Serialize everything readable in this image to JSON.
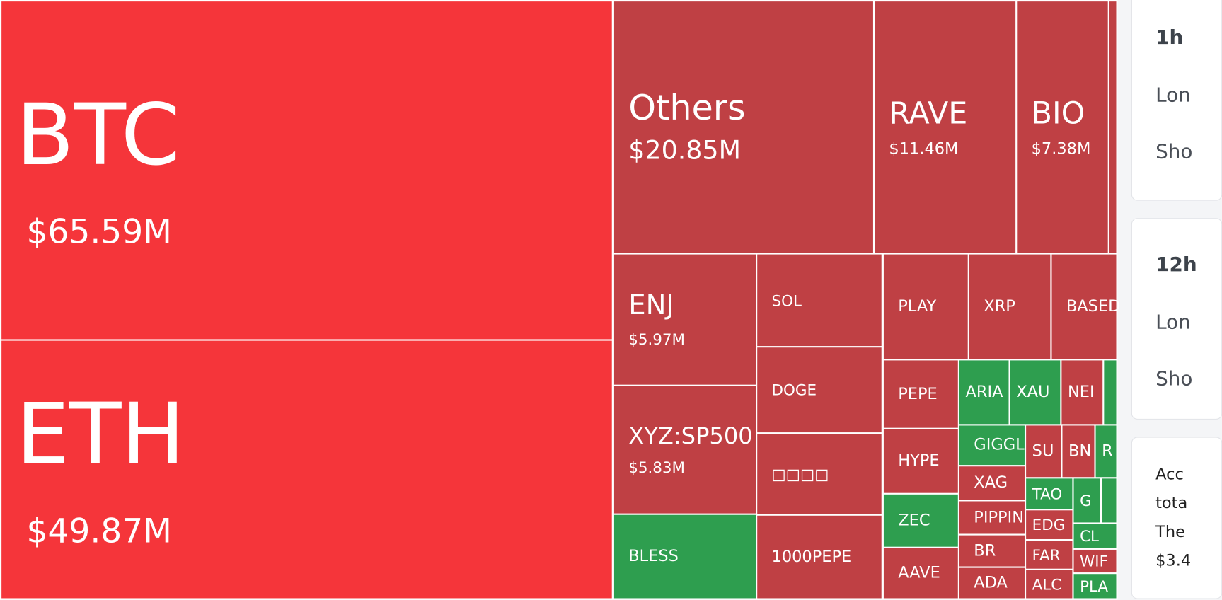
{
  "treemap": {
    "tiles": [
      {
        "label": "BTC",
        "value": "$65.59M",
        "color": "#f5353a"
      },
      {
        "label": "ETH",
        "value": "$49.87M",
        "color": "#f5353a"
      },
      {
        "label": "Others",
        "value": "$20.85M",
        "color": "#bf4044"
      },
      {
        "label": "RAVE",
        "value": "$11.46M",
        "color": "#bf4044"
      },
      {
        "label": "BIO",
        "value": "$7.38M",
        "color": "#bf4044"
      },
      {
        "label": "ENJ",
        "value": "$5.97M",
        "color": "#bf4044"
      },
      {
        "label": "XYZ:SP500",
        "value": "$5.83M",
        "color": "#bf4044"
      },
      {
        "label": "BLESS",
        "color": "#2e9e4f"
      },
      {
        "label": "SOL",
        "color": "#bf4044"
      },
      {
        "label": "DOGE",
        "color": "#bf4044"
      },
      {
        "label": "□□□□",
        "color": "#bf4044"
      },
      {
        "label": "1000PEPE",
        "color": "#bf4044"
      },
      {
        "label": "PLAY",
        "color": "#bf4044"
      },
      {
        "label": "XRP",
        "color": "#bf4044"
      },
      {
        "label": "BASED",
        "color": "#bf4044"
      },
      {
        "label": "PEPE",
        "color": "#bf4044"
      },
      {
        "label": "HYPE",
        "color": "#bf4044"
      },
      {
        "label": "ZEC",
        "color": "#2e9e4f"
      },
      {
        "label": "AAVE",
        "color": "#bf4044"
      },
      {
        "label": "ARIA",
        "color": "#2e9e4f"
      },
      {
        "label": "XAU",
        "color": "#2e9e4f"
      },
      {
        "label": "NEI",
        "color": "#bf4044"
      },
      {
        "label": "GIGGL",
        "color": "#2e9e4f"
      },
      {
        "label": "XAG",
        "color": "#bf4044"
      },
      {
        "label": "PIPPIN",
        "color": "#bf4044"
      },
      {
        "label": "BR",
        "color": "#bf4044"
      },
      {
        "label": "ADA",
        "color": "#bf4044"
      },
      {
        "label": "SU",
        "color": "#bf4044"
      },
      {
        "label": "BN",
        "color": "#bf4044"
      },
      {
        "label": "R",
        "color": "#2e9e4f"
      },
      {
        "label": "TAO",
        "color": "#2e9e4f"
      },
      {
        "label": "EDG",
        "color": "#bf4044"
      },
      {
        "label": "FAR",
        "color": "#bf4044"
      },
      {
        "label": "ALC",
        "color": "#bf4044"
      },
      {
        "label": "G",
        "color": "#2e9e4f"
      },
      {
        "label": "CL",
        "color": "#2e9e4f"
      },
      {
        "label": "WIF",
        "color": "#bf4044"
      },
      {
        "label": "PLA",
        "color": "#2e9e4f"
      }
    ]
  },
  "sidebar": {
    "cards": [
      {
        "title": "1h",
        "lines": [
          "Lon",
          "Sho"
        ]
      },
      {
        "title": "12h",
        "lines": [
          "Lon",
          "Sho"
        ]
      },
      {
        "lines": [
          "Acc",
          "tota",
          "The",
          "$3.4"
        ]
      }
    ]
  }
}
